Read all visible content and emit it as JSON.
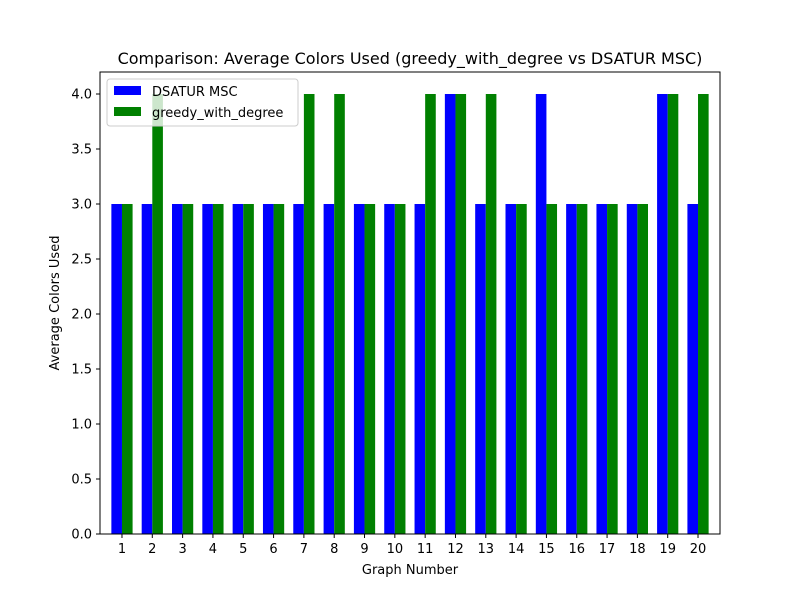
{
  "chart_data": {
    "type": "bar",
    "title": "Comparison: Average Colors Used (greedy_with_degree vs DSATUR MSC)",
    "xlabel": "Graph Number",
    "ylabel": "Average Colors Used",
    "categories": [
      "1",
      "2",
      "3",
      "4",
      "5",
      "6",
      "7",
      "8",
      "9",
      "10",
      "11",
      "12",
      "13",
      "14",
      "15",
      "16",
      "17",
      "18",
      "19",
      "20"
    ],
    "series": [
      {
        "name": "DSATUR MSC",
        "color": "#0000ff",
        "values": [
          3,
          3,
          3,
          3,
          3,
          3,
          3,
          3,
          3,
          3,
          3,
          4,
          3,
          3,
          4,
          3,
          3,
          3,
          4,
          3
        ]
      },
      {
        "name": "greedy_with_degree",
        "color": "#008000",
        "values": [
          3,
          4,
          3,
          3,
          3,
          3,
          4,
          4,
          3,
          3,
          4,
          4,
          4,
          3,
          3,
          3,
          3,
          3,
          4,
          4
        ]
      }
    ],
    "ylim": [
      0,
      4.2
    ],
    "yticks": [
      "0.0",
      "0.5",
      "1.0",
      "1.5",
      "2.0",
      "2.5",
      "3.0",
      "3.5",
      "4.0"
    ],
    "grid": false,
    "legend_position": "upper-left"
  }
}
